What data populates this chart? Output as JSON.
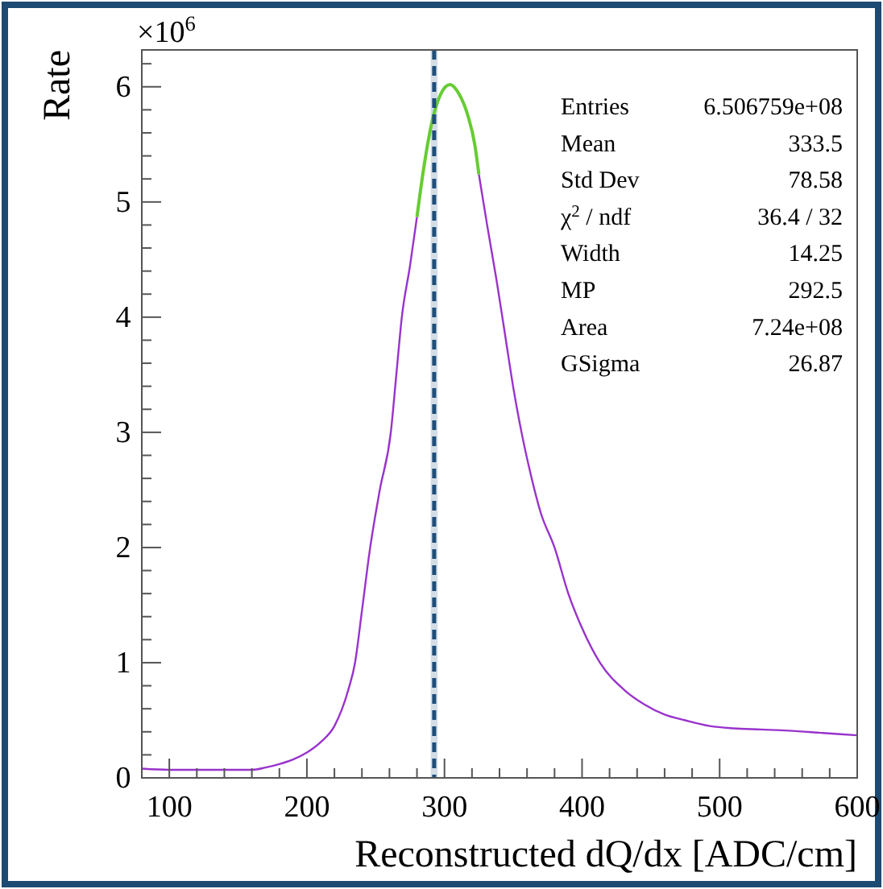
{
  "chart_data": {
    "type": "line",
    "xlabel": "Reconstructed dQ/dx [ADC/cm]",
    "ylabel": "Rate",
    "xlim": [
      80,
      600
    ],
    "ylim": [
      0,
      6.32
    ],
    "xticks": [
      {
        "value": 80,
        "label": null
      },
      100,
      {
        "value": 120,
        "label": null
      },
      {
        "value": 140,
        "label": null
      },
      {
        "value": 160,
        "label": null
      },
      {
        "value": 180,
        "label": null
      },
      200,
      {
        "value": 220,
        "label": null
      },
      {
        "value": 240,
        "label": null
      },
      {
        "value": 260,
        "label": null
      },
      {
        "value": 280,
        "label": null
      },
      300,
      {
        "value": 320,
        "label": null
      },
      {
        "value": 340,
        "label": null
      },
      {
        "value": 360,
        "label": null
      },
      {
        "value": 380,
        "label": null
      },
      400,
      {
        "value": 420,
        "label": null
      },
      {
        "value": 440,
        "label": null
      },
      {
        "value": 460,
        "label": null
      },
      {
        "value": 480,
        "label": null
      },
      500,
      {
        "value": 520,
        "label": null
      },
      {
        "value": 540,
        "label": null
      },
      {
        "value": 560,
        "label": null
      },
      {
        "value": 580,
        "label": null
      },
      600
    ],
    "yticks": [
      0,
      {
        "value": 0.2,
        "label": null
      },
      {
        "value": 0.4,
        "label": null
      },
      {
        "value": 0.6,
        "label": null
      },
      {
        "value": 0.8,
        "label": null
      },
      1,
      {
        "value": 1.2,
        "label": null
      },
      {
        "value": 1.4,
        "label": null
      },
      {
        "value": 1.6,
        "label": null
      },
      {
        "value": 1.8,
        "label": null
      },
      2,
      {
        "value": 2.2,
        "label": null
      },
      {
        "value": 2.4,
        "label": null
      },
      {
        "value": 2.6,
        "label": null
      },
      {
        "value": 2.8,
        "label": null
      },
      3,
      {
        "value": 3.2,
        "label": null
      },
      {
        "value": 3.4,
        "label": null
      },
      {
        "value": 3.6,
        "label": null
      },
      {
        "value": 3.8,
        "label": null
      },
      4,
      {
        "value": 4.2,
        "label": null
      },
      {
        "value": 4.4,
        "label": null
      },
      {
        "value": 4.6,
        "label": null
      },
      {
        "value": 4.8,
        "label": null
      },
      5,
      {
        "value": 5.2,
        "label": null
      },
      {
        "value": 5.4,
        "label": null
      },
      {
        "value": 5.6,
        "label": null
      },
      {
        "value": 5.8,
        "label": null
      },
      6,
      {
        "value": 6.2,
        "label": null
      }
    ],
    "grid": false,
    "series": [
      {
        "color": "#9933cc",
        "x": [
          80,
          100,
          120,
          140,
          160,
          170,
          180,
          190,
          200,
          210,
          220,
          230,
          235,
          240,
          246,
          253,
          261,
          265,
          269,
          275,
          280,
          285,
          291,
          297,
          304,
          310,
          317,
          322,
          325,
          331,
          338,
          344,
          350,
          356,
          362,
          370,
          380,
          390,
          400,
          413,
          431,
          445,
          460,
          475,
          493,
          510,
          530,
          550,
          575,
          600
        ],
        "values": [
          0.08,
          0.07,
          0.07,
          0.07,
          0.07,
          0.09,
          0.12,
          0.16,
          0.22,
          0.31,
          0.45,
          0.76,
          1.0,
          1.45,
          2.0,
          2.5,
          3.0,
          3.5,
          4.0,
          4.45,
          4.87,
          null,
          null,
          null,
          null,
          null,
          null,
          null,
          5.24,
          4.8,
          4.31,
          3.85,
          3.39,
          3.0,
          2.67,
          2.3,
          2.0,
          1.6,
          1.3,
          1.0,
          0.76,
          0.64,
          0.55,
          0.5,
          0.45,
          0.43,
          0.42,
          0.41,
          0.39,
          0.37
        ]
      },
      {
        "type": "line",
        "color": "#66cc33",
        "x": [
          280,
          285,
          291,
          297,
          304,
          310,
          317,
          322,
          325
        ],
        "values": [
          4.87,
          5.3,
          5.7,
          5.93,
          6.02,
          5.95,
          5.75,
          5.5,
          5.24
        ]
      }
    ],
    "ref_lines": [
      {
        "axis": "x",
        "value": 292.5,
        "color": "#1f4e79",
        "line_style": "dashed"
      }
    ],
    "bands": [
      {
        "axis": "x",
        "from": 290,
        "to": 295,
        "color": "#d3dde6"
      }
    ],
    "annotations": [
      "×10$^{6}$",
      "Entries\t6.506759e+08",
      "Mean\t333.5",
      "Std Dev\t78.58",
      "χ$^{2}$ / ndf\t36.4 / 32",
      "Width\t14.25",
      "MP\t292.5",
      "Area\t7.24e+08",
      "GSigma\t26.87"
    ]
  }
}
